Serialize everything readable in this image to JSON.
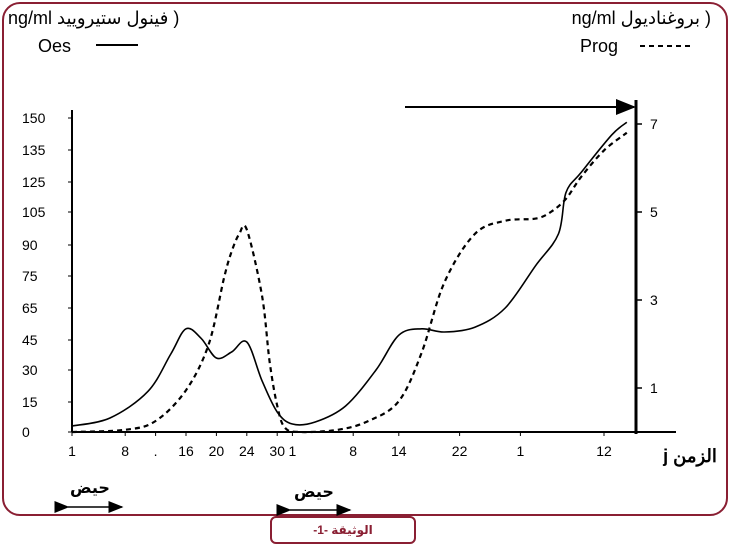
{
  "header": {
    "left_title": "( فينول ستيروييد ng/ml",
    "right_title": "( بروغناديول ng/ml"
  },
  "legend": {
    "oes_label": "Oes",
    "prog_label": "Prog"
  },
  "periods": {
    "first": "حيض",
    "second": "حيض"
  },
  "document_label": "الوثيقة -1-",
  "colors": {
    "frame": "#8a1f33",
    "lines": "#000000"
  },
  "chart_data": {
    "type": "line",
    "xlabel": "الزمن j",
    "x_tick_labels": [
      "1",
      "8",
      ".",
      "16",
      "20",
      "24",
      "30",
      "1",
      "8",
      "14",
      "22",
      "1",
      "12"
    ],
    "x_ticks": [
      1,
      8,
      12,
      16,
      20,
      24,
      28,
      30,
      38,
      44,
      52,
      60,
      71
    ],
    "left_axis": {
      "ticks": [
        0,
        15,
        30,
        45,
        65,
        75,
        90,
        105,
        125,
        135,
        150
      ]
    },
    "right_axis": {
      "ticks": [
        1,
        3,
        5,
        7
      ]
    },
    "series": [
      {
        "name": "Oes",
        "axis": "left",
        "style": "solid",
        "points": [
          [
            1,
            3
          ],
          [
            6,
            7
          ],
          [
            11,
            20
          ],
          [
            14,
            38
          ],
          [
            16,
            52
          ],
          [
            18,
            46
          ],
          [
            20,
            36
          ],
          [
            22,
            39
          ],
          [
            24,
            44
          ],
          [
            26,
            25
          ],
          [
            28,
            10
          ],
          [
            30,
            4
          ],
          [
            33,
            5
          ],
          [
            37,
            13
          ],
          [
            41,
            30
          ],
          [
            44,
            48
          ],
          [
            47,
            52
          ],
          [
            50,
            50
          ],
          [
            54,
            53
          ],
          [
            58,
            65
          ],
          [
            62,
            80
          ],
          [
            65,
            95
          ],
          [
            66,
            118
          ],
          [
            68,
            128
          ],
          [
            72,
            142
          ],
          [
            74,
            148
          ]
        ]
      },
      {
        "name": "Prog",
        "axis": "right",
        "style": "dashed",
        "points": [
          [
            1,
            0
          ],
          [
            8,
            0.05
          ],
          [
            12,
            0.25
          ],
          [
            16,
            0.95
          ],
          [
            19,
            2.0
          ],
          [
            21,
            3.5
          ],
          [
            22,
            4.1
          ],
          [
            23,
            4.5
          ],
          [
            24,
            4.6
          ],
          [
            26,
            3.1
          ],
          [
            27,
            1.6
          ],
          [
            28,
            0.6
          ],
          [
            29,
            0.1
          ],
          [
            31,
            0
          ],
          [
            36,
            0.05
          ],
          [
            40,
            0.25
          ],
          [
            44,
            0.7
          ],
          [
            47,
            1.8
          ],
          [
            50,
            3.4
          ],
          [
            54,
            4.5
          ],
          [
            58,
            4.8
          ],
          [
            62,
            4.85
          ],
          [
            64,
            5.0
          ],
          [
            66,
            5.3
          ],
          [
            68,
            5.8
          ],
          [
            71,
            6.4
          ],
          [
            74,
            6.8
          ]
        ]
      }
    ]
  }
}
